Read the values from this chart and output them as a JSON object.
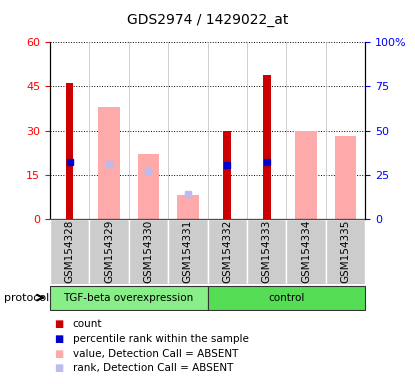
{
  "title": "GDS2974 / 1429022_at",
  "samples": [
    "GSM154328",
    "GSM154329",
    "GSM154330",
    "GSM154331",
    "GSM154332",
    "GSM154333",
    "GSM154334",
    "GSM154335"
  ],
  "count_values": [
    46,
    0,
    0,
    0,
    30,
    49,
    0,
    0
  ],
  "value_absent": [
    0,
    38,
    22,
    8,
    0,
    0,
    30,
    28
  ],
  "rank_absent_vals": [
    0,
    31,
    27,
    14,
    0,
    0,
    0,
    0
  ],
  "percentile_present": [
    32,
    null,
    null,
    null,
    30.5,
    32,
    null,
    null
  ],
  "ylim_left": [
    0,
    60
  ],
  "ylim_right": [
    0,
    100
  ],
  "yticks_left": [
    0,
    15,
    30,
    45,
    60
  ],
  "yticks_right": [
    0,
    25,
    50,
    75,
    100
  ],
  "yticklabels_right": [
    "0",
    "25",
    "50",
    "75",
    "100%"
  ],
  "color_count": "#cc0000",
  "color_percentile": "#0000cc",
  "color_value_absent": "#ffaaaa",
  "color_rank_absent": "#bbbbee",
  "tgf_color": "#88ee88",
  "ctrl_color": "#55dd55",
  "sample_bg_color": "#cccccc",
  "legend_labels": [
    "count",
    "percentile rank within the sample",
    "value, Detection Call = ABSENT",
    "rank, Detection Call = ABSENT"
  ]
}
